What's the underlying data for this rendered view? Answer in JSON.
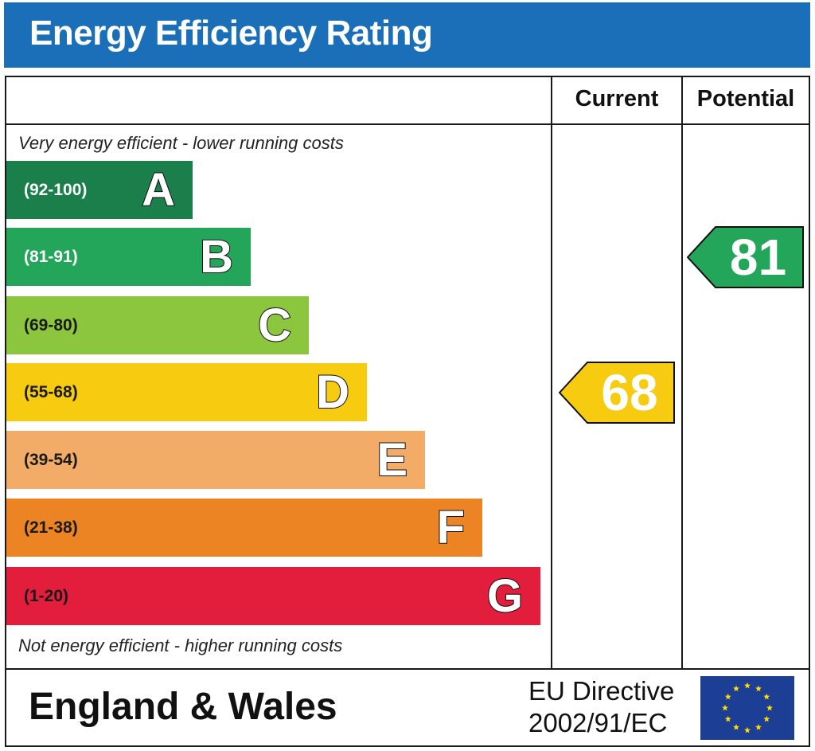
{
  "header": {
    "title": "Energy Efficiency Rating"
  },
  "columns": {
    "current": "Current",
    "potential": "Potential"
  },
  "captions": {
    "top": "Very energy efficient - lower running costs",
    "bottom": "Not energy efficient - higher running costs"
  },
  "chart_data": {
    "type": "bar",
    "title": "Energy Efficiency Rating",
    "bands": [
      {
        "letter": "A",
        "range": "(92-100)",
        "color": "#1a7f4b",
        "range_color": "#ffffff"
      },
      {
        "letter": "B",
        "range": "(81-91)",
        "color": "#23a65a",
        "range_color": "#ffffff"
      },
      {
        "letter": "C",
        "range": "(69-80)",
        "color": "#8cc63f",
        "range_color": "#1a1a1a"
      },
      {
        "letter": "D",
        "range": "(55-68)",
        "color": "#f7cb10",
        "range_color": "#1a1a1a"
      },
      {
        "letter": "E",
        "range": "(39-54)",
        "color": "#f2ac68",
        "range_color": "#1a1a1a"
      },
      {
        "letter": "F",
        "range": "(21-38)",
        "color": "#ec8423",
        "range_color": "#1a1a1a"
      },
      {
        "letter": "G",
        "range": "(1-20)",
        "color": "#e31d3c",
        "range_color": "#1a1a1a"
      }
    ],
    "current": {
      "value": 68,
      "band": "D",
      "color": "#f7cb10"
    },
    "potential": {
      "value": 81,
      "band": "B",
      "color": "#23a65a"
    }
  },
  "footer": {
    "country": "England & Wales",
    "directive_line1": "EU Directive",
    "directive_line2": "2002/91/EC"
  }
}
